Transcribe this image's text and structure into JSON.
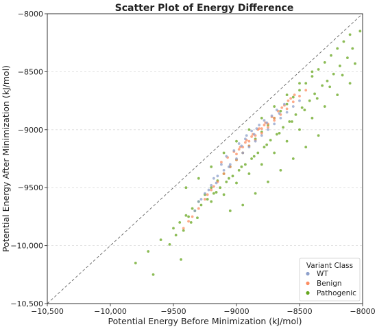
{
  "chart_data": {
    "type": "scatter",
    "title": "Scatter Plot of Energy Difference",
    "xlabel": "Potential Energy Before Minimization (kJ/mol)",
    "ylabel": "Potential Energy After Minimization (kJ/mol)",
    "xlim": [
      -10500,
      -8000
    ],
    "ylim": [
      -10500,
      -8000
    ],
    "x_ticks": [
      -10500,
      -10000,
      -9500,
      -9000,
      -8500,
      -8000
    ],
    "x_tick_labels": [
      "−10,500",
      "−10,000",
      "−9500",
      "−9000",
      "−8500",
      "−8000"
    ],
    "y_ticks": [
      -10500,
      -10000,
      -9500,
      -9000,
      -8500,
      -8000
    ],
    "y_tick_labels": [
      "−10,500",
      "−10,000",
      "−9500",
      "−9000",
      "−8500",
      "−8000"
    ],
    "grid": "horizontal-dashed",
    "reference_line": "y = x (dashed)",
    "legend": {
      "title": "Variant Class",
      "position": "bottom-right"
    },
    "series": [
      {
        "name": "WT",
        "color": "#8da0cb",
        "points": [
          [
            -9300,
            -9620
          ],
          [
            -9250,
            -9550
          ],
          [
            -9200,
            -9480
          ],
          [
            -9150,
            -9400
          ],
          [
            -9100,
            -9350
          ],
          [
            -9050,
            -9300
          ],
          [
            -9000,
            -9250
          ],
          [
            -8950,
            -9200
          ],
          [
            -8900,
            -9150
          ],
          [
            -8850,
            -9100
          ],
          [
            -8800,
            -9050
          ],
          [
            -8750,
            -9000
          ],
          [
            -8700,
            -8950
          ],
          [
            -8650,
            -8900
          ],
          [
            -8600,
            -8850
          ],
          [
            -8550,
            -8800
          ],
          [
            -8500,
            -8750
          ],
          [
            -9180,
            -9420
          ],
          [
            -9120,
            -9300
          ],
          [
            -9080,
            -9230
          ],
          [
            -9020,
            -9180
          ],
          [
            -8980,
            -9120
          ],
          [
            -8930,
            -9080
          ],
          [
            -8880,
            -9010
          ],
          [
            -8820,
            -8960
          ],
          [
            -8780,
            -8920
          ],
          [
            -8720,
            -8880
          ],
          [
            -8680,
            -8830
          ],
          [
            -8620,
            -8780
          ],
          [
            -9220,
            -9520
          ],
          [
            -9160,
            -9460
          ],
          [
            -9060,
            -9320
          ],
          [
            -8960,
            -9140
          ],
          [
            -8860,
            -9040
          ],
          [
            -8760,
            -8940
          ],
          [
            -8660,
            -8860
          ],
          [
            -9330,
            -9700
          ],
          [
            -9280,
            -9600
          ],
          [
            -8920,
            -9050
          ],
          [
            -8840,
            -8990
          ]
        ]
      },
      {
        "name": "Benign",
        "color": "#fc8d62",
        "points": [
          [
            -9350,
            -9750
          ],
          [
            -9300,
            -9680
          ],
          [
            -9250,
            -9600
          ],
          [
            -9200,
            -9520
          ],
          [
            -9150,
            -9450
          ],
          [
            -9100,
            -9380
          ],
          [
            -9050,
            -9320
          ],
          [
            -9000,
            -9260
          ],
          [
            -8950,
            -9200
          ],
          [
            -8900,
            -9140
          ],
          [
            -8850,
            -9090
          ],
          [
            -8800,
            -9030
          ],
          [
            -8750,
            -8980
          ],
          [
            -8700,
            -8920
          ],
          [
            -8650,
            -8870
          ],
          [
            -8600,
            -8820
          ],
          [
            -8550,
            -8760
          ],
          [
            -8500,
            -8710
          ],
          [
            -8450,
            -8660
          ],
          [
            -9120,
            -9280
          ],
          [
            -9070,
            -9240
          ],
          [
            -9020,
            -9190
          ],
          [
            -8970,
            -9150
          ],
          [
            -8920,
            -9090
          ],
          [
            -8870,
            -9040
          ],
          [
            -8820,
            -8990
          ],
          [
            -8770,
            -8940
          ],
          [
            -8720,
            -8890
          ],
          [
            -8670,
            -8840
          ],
          [
            -8620,
            -8790
          ],
          [
            -8570,
            -8730
          ],
          [
            -9000,
            -9210
          ],
          [
            -8950,
            -9150
          ],
          [
            -8900,
            -9100
          ],
          [
            -8850,
            -9050
          ],
          [
            -8800,
            -8990
          ],
          [
            -8750,
            -8950
          ],
          [
            -8700,
            -8900
          ],
          [
            -9420,
            -9850
          ],
          [
            -9380,
            -9790
          ],
          [
            -9230,
            -9560
          ],
          [
            -9180,
            -9490
          ],
          [
            -8640,
            -8810
          ],
          [
            -8590,
            -8750
          ],
          [
            -8540,
            -8700
          ],
          [
            -8980,
            -9170
          ],
          [
            -8930,
            -9110
          ],
          [
            -8880,
            -9060
          ],
          [
            -8830,
            -9000
          ],
          [
            -8780,
            -8960
          ]
        ]
      },
      {
        "name": "Pathogenic",
        "color": "#66a61e",
        "points": [
          [
            -9800,
            -10150
          ],
          [
            -9700,
            -10050
          ],
          [
            -9600,
            -9950
          ],
          [
            -9500,
            -9850
          ],
          [
            -9450,
            -9800
          ],
          [
            -9400,
            -9740
          ],
          [
            -9350,
            -9680
          ],
          [
            -9300,
            -9620
          ],
          [
            -9250,
            -9560
          ],
          [
            -9200,
            -9500
          ],
          [
            -9150,
            -9440
          ],
          [
            -9100,
            -9380
          ],
          [
            -9050,
            -9320
          ],
          [
            -9000,
            -9260
          ],
          [
            -8950,
            -9200
          ],
          [
            -8900,
            -9140
          ],
          [
            -8850,
            -9080
          ],
          [
            -8800,
            -9020
          ],
          [
            -8750,
            -8960
          ],
          [
            -8700,
            -8900
          ],
          [
            -8650,
            -8840
          ],
          [
            -8600,
            -8780
          ],
          [
            -8550,
            -8720
          ],
          [
            -8500,
            -8660
          ],
          [
            -8450,
            -8600
          ],
          [
            -8400,
            -8540
          ],
          [
            -8350,
            -8480
          ],
          [
            -8300,
            -8420
          ],
          [
            -8250,
            -8360
          ],
          [
            -8200,
            -8300
          ],
          [
            -8150,
            -8240
          ],
          [
            -8100,
            -8180
          ],
          [
            -9200,
            -9620
          ],
          [
            -9100,
            -9560
          ],
          [
            -9000,
            -9460
          ],
          [
            -8900,
            -9380
          ],
          [
            -8800,
            -9300
          ],
          [
            -8700,
            -9200
          ],
          [
            -8600,
            -9100
          ],
          [
            -8500,
            -9000
          ],
          [
            -8400,
            -8900
          ],
          [
            -8300,
            -8800
          ],
          [
            -8200,
            -8700
          ],
          [
            -8100,
            -8600
          ],
          [
            -9400,
            -9500
          ],
          [
            -9300,
            -9420
          ],
          [
            -9200,
            -9320
          ],
          [
            -9100,
            -9200
          ],
          [
            -9000,
            -9100
          ],
          [
            -8900,
            -9000
          ],
          [
            -8800,
            -8900
          ],
          [
            -8700,
            -8800
          ],
          [
            -8600,
            -8700
          ],
          [
            -8500,
            -8600
          ],
          [
            -8400,
            -8500
          ],
          [
            -9050,
            -9700
          ],
          [
            -8950,
            -9650
          ],
          [
            -8850,
            -9550
          ],
          [
            -8750,
            -9450
          ],
          [
            -8650,
            -9350
          ],
          [
            -8550,
            -9250
          ],
          [
            -8450,
            -9150
          ],
          [
            -8350,
            -9050
          ],
          [
            -9660,
            -10250
          ],
          [
            -9440,
            -10120
          ],
          [
            -9530,
            -9990
          ],
          [
            -9480,
            -9910
          ],
          [
            -9420,
            -9870
          ],
          [
            -9360,
            -9800
          ],
          [
            -9310,
            -9760
          ],
          [
            -9160,
            -9540
          ],
          [
            -9060,
            -9420
          ],
          [
            -8960,
            -9320
          ],
          [
            -8860,
            -9230
          ],
          [
            -8760,
            -9130
          ],
          [
            -8660,
            -9030
          ],
          [
            -8560,
            -8930
          ],
          [
            -8460,
            -8830
          ],
          [
            -8360,
            -8730
          ],
          [
            -8260,
            -8630
          ],
          [
            -8160,
            -8530
          ],
          [
            -8060,
            -8430
          ],
          [
            -8020,
            -8150
          ],
          [
            -8080,
            -8300
          ],
          [
            -8120,
            -8380
          ],
          [
            -8180,
            -8450
          ],
          [
            -8230,
            -8520
          ],
          [
            -8280,
            -8580
          ],
          [
            -8320,
            -8620
          ],
          [
            -8380,
            -8690
          ],
          [
            -8420,
            -8750
          ],
          [
            -8480,
            -8810
          ],
          [
            -8530,
            -8870
          ],
          [
            -8580,
            -8930
          ],
          [
            -8630,
            -8980
          ],
          [
            -8680,
            -9040
          ],
          [
            -8730,
            -9090
          ],
          [
            -8780,
            -9150
          ],
          [
            -8830,
            -9200
          ],
          [
            -8880,
            -9250
          ],
          [
            -8930,
            -9300
          ],
          [
            -8980,
            -9350
          ],
          [
            -9030,
            -9400
          ],
          [
            -9080,
            -9450
          ],
          [
            -9130,
            -9500
          ],
          [
            -9180,
            -9550
          ],
          [
            -9230,
            -9600
          ],
          [
            -9280,
            -9650
          ],
          [
            -9330,
            -9700
          ],
          [
            -9380,
            -9750
          ]
        ]
      }
    ]
  }
}
